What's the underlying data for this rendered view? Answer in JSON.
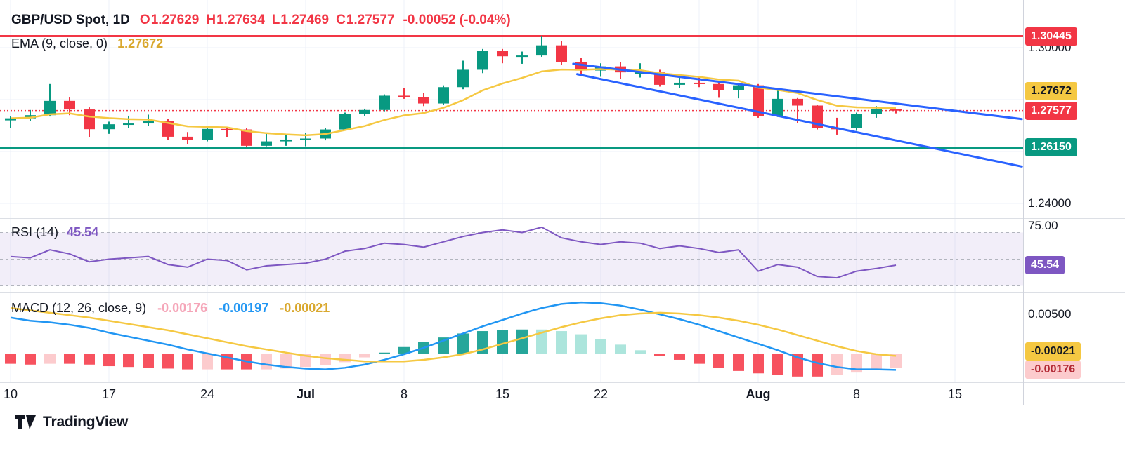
{
  "header": {
    "symbol": "GBP/USD Spot, 1D",
    "ohlc": [
      {
        "key": "O",
        "value": "1.27629"
      },
      {
        "key": "H",
        "value": "1.27634"
      },
      {
        "key": "L",
        "value": "1.27469"
      },
      {
        "key": "C",
        "value": "1.27577"
      }
    ],
    "change": "-0.00052 (-0.04%)",
    "ema_label": "EMA (9, close, 0)",
    "ema_value": "1.27672"
  },
  "rsi_pane": {
    "label": "RSI (14)",
    "value": "45.54"
  },
  "macd_pane": {
    "label": "MACD (12, 26, close, 9)",
    "hist_value": "-0.00176",
    "macd_value": "-0.00197",
    "signal_value": "-0.00021"
  },
  "price_axis": {
    "ticks": [
      {
        "label": "1.30000",
        "price": 1.3
      },
      {
        "label": "1.24000",
        "price": 1.24
      }
    ],
    "badges": [
      {
        "name": "resistance",
        "label": "1.30445",
        "price": 1.30445,
        "bg": "#F23645",
        "fg": "#FFFFFF"
      },
      {
        "name": "ema",
        "label": "1.27672",
        "price": 1.27672,
        "bg": "#F5C842",
        "fg": "#131722"
      },
      {
        "name": "last-price",
        "label": "1.27577",
        "price": 1.27577,
        "bg": "#F23645",
        "fg": "#FFFFFF"
      },
      {
        "name": "support",
        "label": "1.26150",
        "price": 1.2615,
        "bg": "#089981",
        "fg": "#FFFFFF"
      }
    ]
  },
  "rsi_axis": {
    "ticks": [
      {
        "label": "75.00",
        "value": 75
      }
    ],
    "badge": {
      "name": "rsi",
      "label": "45.54",
      "value": 45.54,
      "bg": "#7E57C2",
      "fg": "#FFFFFF"
    }
  },
  "macd_axis": {
    "ticks": [
      {
        "label": "0.00500",
        "value": 0.005
      }
    ],
    "badges": [
      {
        "name": "signal",
        "label": "-0.00021",
        "value": -0.00021,
        "bg": "#F5C842",
        "fg": "#131722"
      },
      {
        "name": "histogram",
        "label": "-0.00176",
        "value": -0.00176,
        "bg": "#FCCBCD",
        "fg": "#B22833"
      }
    ]
  },
  "time_axis": {
    "labels": [
      {
        "index": 0,
        "text": "10"
      },
      {
        "index": 5,
        "text": "17"
      },
      {
        "index": 10,
        "text": "24"
      },
      {
        "index": 15,
        "text": "Jul",
        "major": true
      },
      {
        "index": 20,
        "text": "8"
      },
      {
        "index": 25,
        "text": "15"
      },
      {
        "index": 30,
        "text": "22"
      },
      {
        "index": 38,
        "text": "Aug",
        "major": true
      },
      {
        "index": 43,
        "text": "8"
      },
      {
        "index": 48,
        "text": "15"
      }
    ]
  },
  "logo": {
    "text": "TradingView"
  },
  "colors": {
    "up": "#089981",
    "down": "#F23645",
    "ema_line": "#F5C842",
    "signal_line": "#F5C842",
    "macd_line": "#2196F3",
    "trend": "#2962FF",
    "rsi": "#7E57C2",
    "hist_up": "#26A69A",
    "hist_up_weak": "#ACE5DC",
    "hist_down": "#F7525F",
    "hist_down_weak": "#FCCBCD",
    "yellow_text": "#D9A82E",
    "pink_text": "#F5A5B8",
    "blue_text": "#2196F3",
    "purple_text": "#7E57C2",
    "support_line": "#089981",
    "resistance_line": "#F23645"
  },
  "chart_data": {
    "type": "candlestick+indicators",
    "symbol": "GBP/USD Spot",
    "interval": "1D",
    "levels": {
      "resistance": 1.30445,
      "support": 1.2615,
      "last_price": 1.27577
    },
    "trendlines": [
      {
        "from_index": 28.6,
        "from_price": 1.2938,
        "to_index": 51.4,
        "to_price": 1.2725
      },
      {
        "from_index": 28.8,
        "from_price": 1.2898,
        "to_index": 51.4,
        "to_price": 1.2542
      }
    ],
    "candles": {
      "columns": [
        "date",
        "open",
        "high",
        "low",
        "close"
      ],
      "rows": [
        [
          "Jun 10",
          1.272,
          1.2735,
          1.269,
          1.2728
        ],
        [
          "Jun 11",
          1.2728,
          1.276,
          1.2718,
          1.274
        ],
        [
          "Jun 12",
          1.274,
          1.286,
          1.2735,
          1.2795
        ],
        [
          "Jun 13",
          1.2795,
          1.2808,
          1.274,
          1.2762
        ],
        [
          "Jun 14",
          1.2762,
          1.277,
          1.2655,
          1.2686
        ],
        [
          "Jun 17",
          1.2686,
          1.2715,
          1.2668,
          1.2705
        ],
        [
          "Jun 18",
          1.2705,
          1.2738,
          1.269,
          1.2708
        ],
        [
          "Jun 19",
          1.2708,
          1.2742,
          1.2698,
          1.2718
        ],
        [
          "Jun 20",
          1.2718,
          1.2725,
          1.2645,
          1.2657
        ],
        [
          "Jun 21",
          1.2657,
          1.2675,
          1.2628,
          1.2644
        ],
        [
          "Jun 24",
          1.2644,
          1.2698,
          1.2639,
          1.2687
        ],
        [
          "Jun 25",
          1.2687,
          1.2695,
          1.2655,
          1.2685
        ],
        [
          "Jun 26",
          1.2685,
          1.269,
          1.2618,
          1.2622
        ],
        [
          "Jun 27",
          1.2622,
          1.267,
          1.262,
          1.2639
        ],
        [
          "Jun 28",
          1.2639,
          1.2663,
          1.2622,
          1.2646
        ],
        [
          "Jul 1",
          1.2646,
          1.2672,
          1.262,
          1.265
        ],
        [
          "Jul 2",
          1.265,
          1.269,
          1.2643,
          1.2685
        ],
        [
          "Jul 3",
          1.2685,
          1.275,
          1.268,
          1.2745
        ],
        [
          "Jul 4",
          1.2745,
          1.2765,
          1.2738,
          1.276
        ],
        [
          "Jul 5",
          1.276,
          1.282,
          1.2755,
          1.2815
        ],
        [
          "Jul 8",
          1.2815,
          1.2845,
          1.2803,
          1.281
        ],
        [
          "Jul 9",
          1.281,
          1.2825,
          1.2775,
          1.2785
        ],
        [
          "Jul 10",
          1.2785,
          1.2855,
          1.278,
          1.2848
        ],
        [
          "Jul 11",
          1.2848,
          1.295,
          1.284,
          1.2915
        ],
        [
          "Jul 12",
          1.2915,
          1.2995,
          1.2902,
          1.2988
        ],
        [
          "Jul 15",
          1.2988,
          1.2995,
          1.294,
          1.2967
        ],
        [
          "Jul 16",
          1.2967,
          1.2985,
          1.2938,
          1.297
        ],
        [
          "Jul 17",
          1.297,
          1.3044,
          1.2965,
          1.3009
        ],
        [
          "Jul 18",
          1.3009,
          1.3025,
          1.2935,
          1.2944
        ],
        [
          "Jul 19",
          1.2944,
          1.296,
          1.29,
          1.2912
        ],
        [
          "Jul 22",
          1.2912,
          1.294,
          1.2888,
          1.2928
        ],
        [
          "Jul 23",
          1.2928,
          1.2945,
          1.288,
          1.2905
        ],
        [
          "Jul 24",
          1.2898,
          1.294,
          1.2885,
          1.2905
        ],
        [
          "Jul 25",
          1.2905,
          1.2915,
          1.285,
          1.2857
        ],
        [
          "Jul 26",
          1.2857,
          1.289,
          1.2845,
          1.2865
        ],
        [
          "Jul 29",
          1.2865,
          1.2885,
          1.2848,
          1.286
        ],
        [
          "Jul 30",
          1.286,
          1.2872,
          1.2807,
          1.2837
        ],
        [
          "Jul 31",
          1.2837,
          1.2862,
          1.2805,
          1.2855
        ],
        [
          "Aug 1",
          1.2855,
          1.286,
          1.273,
          1.2737
        ],
        [
          "Aug 2",
          1.2737,
          1.284,
          1.2733,
          1.2803
        ],
        [
          "Aug 5",
          1.2803,
          1.2806,
          1.2709,
          1.2777
        ],
        [
          "Aug 6",
          1.2777,
          1.278,
          1.2685,
          1.2691
        ],
        [
          "Aug 7",
          1.2691,
          1.273,
          1.2665,
          1.269
        ],
        [
          "Aug 8",
          1.269,
          1.275,
          1.268,
          1.2745
        ],
        [
          "Aug 9",
          1.2745,
          1.2775,
          1.273,
          1.27629
        ],
        [
          "Aug 12",
          1.27629,
          1.27634,
          1.27469,
          1.27577
        ]
      ]
    },
    "ema": {
      "period": 9,
      "last_value": 1.27672
    },
    "rsi": {
      "period": 14,
      "band": {
        "upper": 70,
        "middle": 50,
        "lower": 30
      },
      "values": [
        52,
        51,
        57,
        54,
        48,
        50,
        51,
        52,
        46,
        44,
        50,
        49,
        42,
        45,
        46,
        47,
        50,
        56,
        58,
        62,
        61,
        59,
        63,
        67,
        70,
        72,
        70,
        74,
        66,
        63,
        61,
        63,
        62,
        58,
        60,
        58,
        55,
        57,
        41,
        46,
        44,
        37,
        36,
        41,
        43,
        45.54
      ]
    },
    "macd": {
      "fast": 12,
      "slow": 26,
      "signal_period": 9,
      "macd_line": [
        0.0046,
        0.0042,
        0.004,
        0.0037,
        0.0033,
        0.0027,
        0.0022,
        0.0017,
        0.0012,
        0.0006,
        0.0001,
        -0.0004,
        -0.0009,
        -0.0013,
        -0.0016,
        -0.0018,
        -0.0019,
        -0.0017,
        -0.0013,
        -0.0007,
        0.0,
        0.0008,
        0.0017,
        0.0026,
        0.0035,
        0.0043,
        0.0051,
        0.0058,
        0.0063,
        0.0065,
        0.0064,
        0.0061,
        0.0056,
        0.005,
        0.0044,
        0.0037,
        0.0029,
        0.0021,
        0.0013,
        0.0005,
        -0.0004,
        -0.0011,
        -0.0016,
        -0.0019,
        -0.0019,
        -0.00197
      ],
      "signal_line": [
        0.0058,
        0.0055,
        0.0052,
        0.0049,
        0.0046,
        0.0042,
        0.0038,
        0.0034,
        0.003,
        0.0025,
        0.002,
        0.0015,
        0.001,
        0.0006,
        0.0002,
        -0.0002,
        -0.0005,
        -0.0007,
        -0.0009,
        -0.0009,
        -0.0009,
        -0.0007,
        -0.0004,
        0.0,
        0.0006,
        0.0013,
        0.002,
        0.0027,
        0.0034,
        0.004,
        0.0045,
        0.0049,
        0.0051,
        0.0052,
        0.0051,
        0.0049,
        0.0046,
        0.0042,
        0.0037,
        0.0031,
        0.0024,
        0.0017,
        0.001,
        0.0004,
        0.0,
        -0.00021
      ]
    }
  }
}
